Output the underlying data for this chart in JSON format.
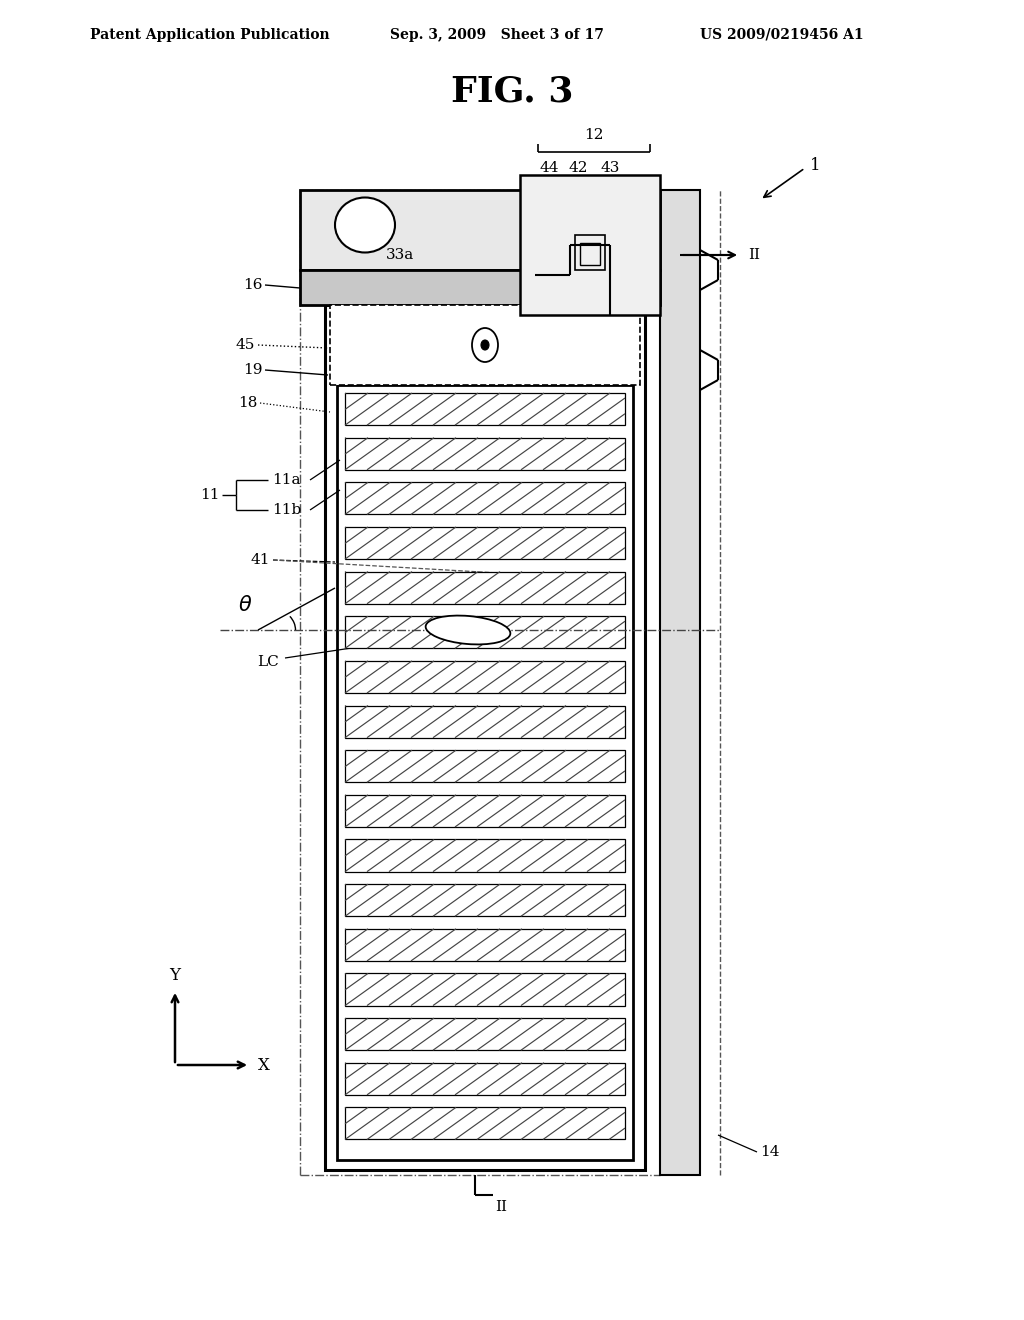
{
  "title": "FIG. 3",
  "header_left": "Patent Application Publication",
  "header_center": "Sep. 3, 2009   Sheet 3 of 17",
  "header_right": "US 2009/0219456 A1",
  "bg_color": "#ffffff",
  "fg_color": "#000000"
}
